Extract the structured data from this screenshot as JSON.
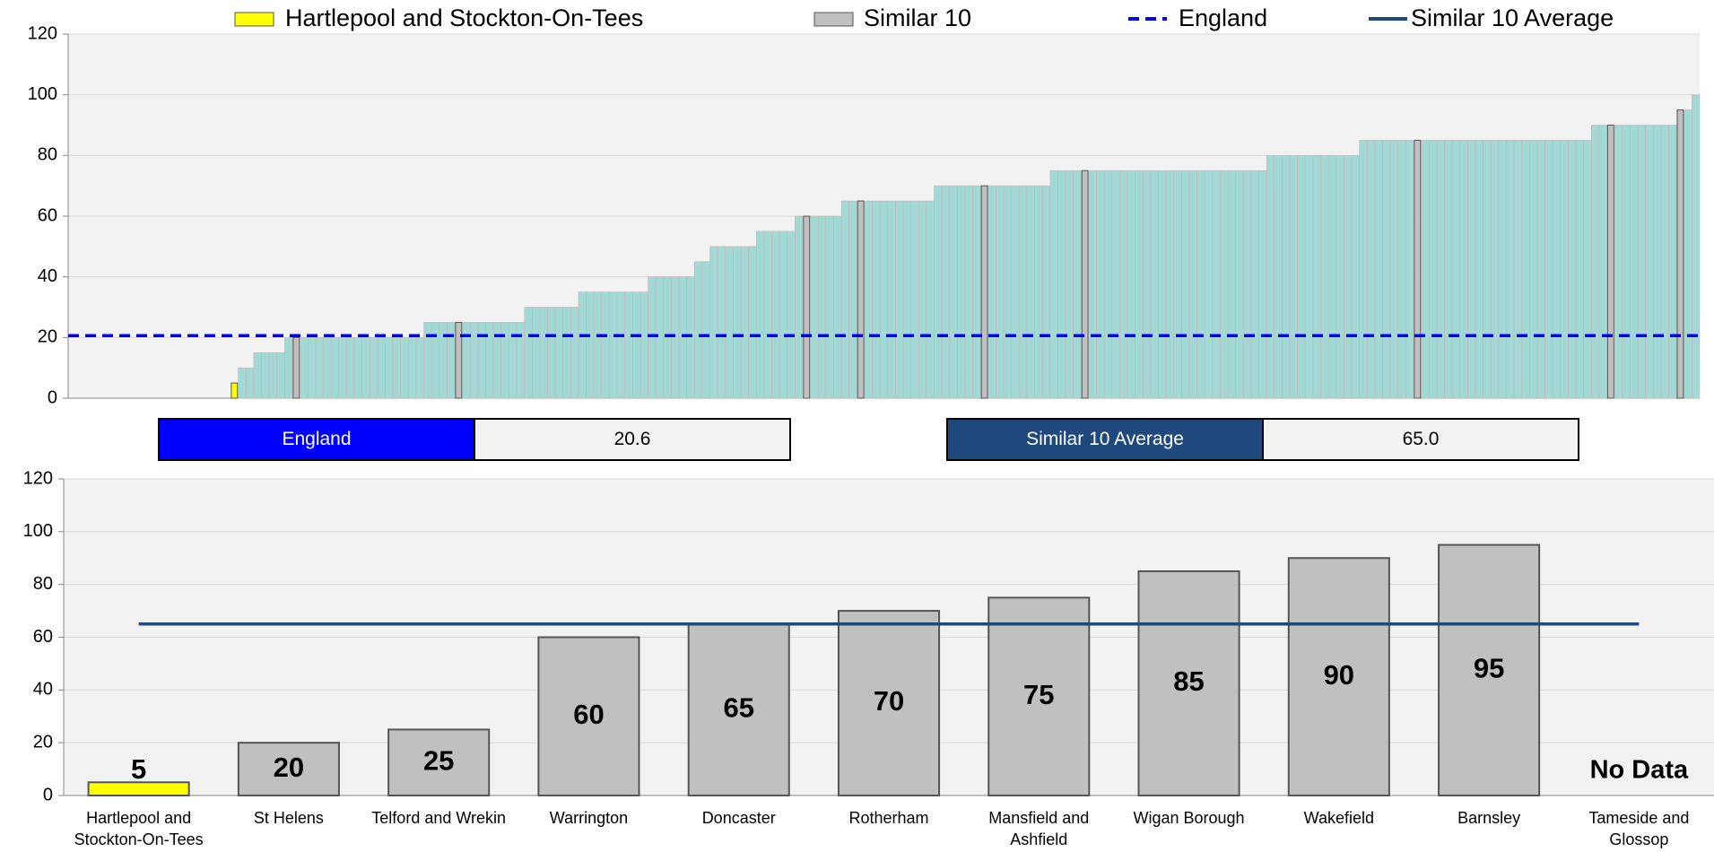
{
  "legend": [
    {
      "name": "Hartlepool and Stockton-On-Tees",
      "color": "#ffff00",
      "style": "swatch"
    },
    {
      "name": "Similar 10",
      "color": "#c0c0c0",
      "style": "swatch"
    },
    {
      "name": "England",
      "color": "#0000ff",
      "style": "dashed"
    },
    {
      "name": "Similar 10 Average",
      "color": "#1f497d",
      "style": "solid"
    }
  ],
  "summary": [
    {
      "label": "England",
      "value": 20.6,
      "color": "#0000ff"
    },
    {
      "label": "Similar 10 Average",
      "value": 65,
      "value_label": "65.0",
      "color": "#1f497d"
    }
  ],
  "chart_data": [
    {
      "type": "bar",
      "ylim": [
        0,
        120
      ],
      "yticks": [
        0,
        20,
        40,
        60,
        80,
        100,
        120
      ],
      "grid": true,
      "values": [
        0,
        0,
        0,
        0,
        0,
        0,
        0,
        0,
        0,
        0,
        0,
        0,
        0,
        0,
        0,
        0,
        0,
        0,
        0,
        0,
        0,
        5,
        10,
        10,
        15,
        15,
        15,
        15,
        20,
        20,
        20,
        20,
        20,
        20,
        20,
        20,
        20,
        20,
        20,
        20,
        20,
        20,
        20,
        20,
        20,
        20,
        25,
        25,
        25,
        25,
        25,
        25,
        25,
        25,
        25,
        25,
        25,
        25,
        25,
        30,
        30,
        30,
        30,
        30,
        30,
        30,
        35,
        35,
        35,
        35,
        35,
        35,
        35,
        35,
        35,
        40,
        40,
        40,
        40,
        40,
        40,
        45,
        45,
        50,
        50,
        50,
        50,
        50,
        50,
        55,
        55,
        55,
        55,
        55,
        60,
        60,
        60,
        60,
        60,
        60,
        65,
        65,
        65,
        65,
        65,
        65,
        65,
        65,
        65,
        65,
        65,
        65,
        70,
        70,
        70,
        70,
        70,
        70,
        70,
        70,
        70,
        70,
        70,
        70,
        70,
        70,
        70,
        75,
        75,
        75,
        75,
        75,
        75,
        75,
        75,
        75,
        75,
        75,
        75,
        75,
        75,
        75,
        75,
        75,
        75,
        75,
        75,
        75,
        75,
        75,
        75,
        75,
        75,
        75,
        75,
        80,
        80,
        80,
        80,
        80,
        80,
        80,
        80,
        80,
        80,
        80,
        80,
        85,
        85,
        85,
        85,
        85,
        85,
        85,
        85,
        85,
        85,
        85,
        85,
        85,
        85,
        85,
        85,
        85,
        85,
        85,
        85,
        85,
        85,
        85,
        85,
        85,
        85,
        85,
        85,
        85,
        85,
        90,
        90,
        90,
        90,
        90,
        90,
        90,
        90,
        90,
        90,
        90,
        95,
        95,
        100
      ],
      "colors": [
        "#a3d9d5",
        "#a3d9d5",
        "#a3d9d5",
        "#a3d9d5",
        "#a3d9d5",
        "#a3d9d5",
        "#a3d9d5",
        "#a3d9d5",
        "#a3d9d5",
        "#a3d9d5",
        "#a3d9d5",
        "#a3d9d5",
        "#a3d9d5",
        "#a3d9d5",
        "#a3d9d5",
        "#a3d9d5",
        "#a3d9d5",
        "#a3d9d5",
        "#a3d9d5",
        "#a3d9d5",
        "#a3d9d5",
        "#ffff00",
        "#a3d9d5",
        "#a3d9d5",
        "#a3d9d5",
        "#a3d9d5",
        "#a3d9d5",
        "#a3d9d5",
        "#a3d9d5",
        "#c0c0c0",
        "#a3d9d5",
        "#a3d9d5",
        "#a3d9d5",
        "#a3d9d5",
        "#a3d9d5",
        "#a3d9d5",
        "#a3d9d5",
        "#a3d9d5",
        "#a3d9d5",
        "#a3d9d5",
        "#a3d9d5",
        "#a3d9d5",
        "#a3d9d5",
        "#a3d9d5",
        "#a3d9d5",
        "#a3d9d5",
        "#a3d9d5",
        "#a3d9d5",
        "#a3d9d5",
        "#a3d9d5",
        "#c0c0c0",
        "#a3d9d5",
        "#a3d9d5",
        "#a3d9d5",
        "#a3d9d5",
        "#a3d9d5",
        "#a3d9d5",
        "#a3d9d5",
        "#a3d9d5",
        "#a3d9d5",
        "#a3d9d5",
        "#a3d9d5",
        "#a3d9d5",
        "#a3d9d5",
        "#a3d9d5",
        "#a3d9d5",
        "#a3d9d5",
        "#a3d9d5",
        "#a3d9d5",
        "#a3d9d5",
        "#a3d9d5",
        "#a3d9d5",
        "#a3d9d5",
        "#a3d9d5",
        "#a3d9d5",
        "#a3d9d5",
        "#a3d9d5",
        "#a3d9d5",
        "#a3d9d5",
        "#a3d9d5",
        "#a3d9d5",
        "#a3d9d5",
        "#a3d9d5",
        "#a3d9d5",
        "#a3d9d5",
        "#a3d9d5",
        "#a3d9d5",
        "#a3d9d5",
        "#a3d9d5",
        "#a3d9d5",
        "#a3d9d5",
        "#a3d9d5",
        "#a3d9d5",
        "#a3d9d5",
        "#a3d9d5",
        "#c0c0c0",
        "#a3d9d5",
        "#a3d9d5",
        "#a3d9d5",
        "#a3d9d5",
        "#a3d9d5",
        "#a3d9d5",
        "#c0c0c0",
        "#a3d9d5",
        "#a3d9d5",
        "#a3d9d5",
        "#a3d9d5",
        "#a3d9d5",
        "#a3d9d5",
        "#a3d9d5",
        "#a3d9d5",
        "#a3d9d5",
        "#a3d9d5",
        "#a3d9d5",
        "#a3d9d5",
        "#a3d9d5",
        "#a3d9d5",
        "#a3d9d5",
        "#c0c0c0",
        "#a3d9d5",
        "#a3d9d5",
        "#a3d9d5",
        "#a3d9d5",
        "#a3d9d5",
        "#a3d9d5",
        "#a3d9d5",
        "#a3d9d5",
        "#a3d9d5",
        "#a3d9d5",
        "#a3d9d5",
        "#a3d9d5",
        "#c0c0c0",
        "#a3d9d5",
        "#a3d9d5",
        "#a3d9d5",
        "#a3d9d5",
        "#a3d9d5",
        "#a3d9d5",
        "#a3d9d5",
        "#a3d9d5",
        "#a3d9d5",
        "#a3d9d5",
        "#a3d9d5",
        "#a3d9d5",
        "#a3d9d5",
        "#a3d9d5",
        "#a3d9d5",
        "#a3d9d5",
        "#a3d9d5",
        "#a3d9d5",
        "#a3d9d5",
        "#a3d9d5",
        "#a3d9d5",
        "#a3d9d5",
        "#a3d9d5",
        "#a3d9d5",
        "#a3d9d5",
        "#a3d9d5",
        "#a3d9d5",
        "#a3d9d5",
        "#a3d9d5",
        "#a3d9d5",
        "#a3d9d5",
        "#a3d9d5",
        "#a3d9d5",
        "#a3d9d5",
        "#a3d9d5",
        "#a3d9d5",
        "#a3d9d5",
        "#a3d9d5",
        "#a3d9d5",
        "#a3d9d5",
        "#a3d9d5",
        "#a3d9d5",
        "#c0c0c0",
        "#a3d9d5",
        "#a3d9d5",
        "#a3d9d5",
        "#a3d9d5",
        "#a3d9d5",
        "#a3d9d5",
        "#a3d9d5",
        "#a3d9d5",
        "#a3d9d5",
        "#a3d9d5",
        "#a3d9d5",
        "#a3d9d5",
        "#a3d9d5",
        "#a3d9d5",
        "#a3d9d5",
        "#a3d9d5",
        "#a3d9d5",
        "#a3d9d5",
        "#a3d9d5",
        "#a3d9d5",
        "#a3d9d5",
        "#a3d9d5",
        "#a3d9d5",
        "#a3d9d5",
        "#c0c0c0",
        "#a3d9d5",
        "#a3d9d5",
        "#a3d9d5",
        "#a3d9d5",
        "#a3d9d5",
        "#a3d9d5",
        "#a3d9d5",
        "#a3d9d5",
        "#c0c0c0",
        "#a3d9d5",
        "#a3d9d5"
      ]
    },
    {
      "type": "bar",
      "ylim": [
        0,
        120
      ],
      "yticks": [
        0,
        20,
        40,
        60,
        80,
        100,
        120
      ],
      "grid": true,
      "categories": [
        "Hartlepool and Stockton-On-Tees",
        "St Helens",
        "Telford and Wrekin",
        "Warrington",
        "Doncaster",
        "Rotherham",
        "Mansfield and Ashfield",
        "Wigan Borough",
        "Wakefield",
        "Barnsley",
        "Tameside and Glossop"
      ],
      "values": [
        5,
        20,
        25,
        60,
        65,
        70,
        75,
        85,
        90,
        95,
        null
      ],
      "colors": [
        "#ffff00",
        "#c0c0c0",
        "#c0c0c0",
        "#c0c0c0",
        "#c0c0c0",
        "#c0c0c0",
        "#c0c0c0",
        "#c0c0c0",
        "#c0c0c0",
        "#c0c0c0",
        "#c0c0c0"
      ],
      "annotation": "No Data"
    }
  ]
}
